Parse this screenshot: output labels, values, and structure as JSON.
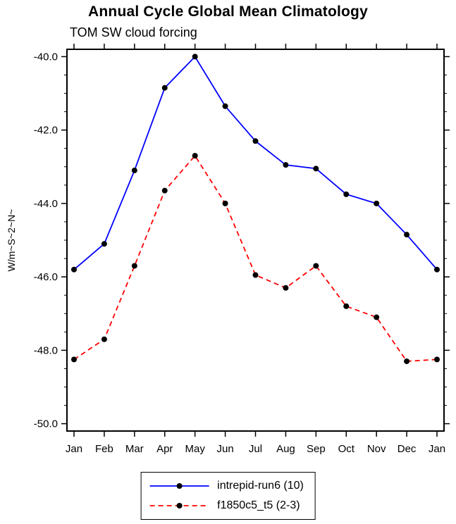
{
  "chart_data": {
    "type": "line",
    "title": "Annual Cycle Global Mean Climatology",
    "subtitle": "TOM SW cloud forcing",
    "ylabel": "W/m~S~2~N~",
    "xlabel": "",
    "categories": [
      "Jan",
      "Feb",
      "Mar",
      "Apr",
      "May",
      "Jun",
      "Jul",
      "Aug",
      "Sep",
      "Oct",
      "Nov",
      "Dec",
      "Jan"
    ],
    "ylim": [
      -50.2,
      -39.8
    ],
    "yticks": [
      -40,
      -42,
      -44,
      -46,
      -48,
      -50
    ],
    "ytick_labels": [
      "-40.0",
      "-42.0",
      "-44.0",
      "-46.0",
      "-48.0",
      "-50.0"
    ],
    "minor_tick_step": 0.5,
    "grid": false,
    "legend_position": "bottom-center",
    "frame_color": "#000000",
    "marker_color": "#000000",
    "series": [
      {
        "name": "intrepid-run6 (10)",
        "color": "#0000ff",
        "dash": "solid",
        "dasharray": "none",
        "marker": "black-dot",
        "values": [
          -45.8,
          -45.1,
          -43.1,
          -40.85,
          -40.0,
          -41.35,
          -42.3,
          -42.95,
          -43.05,
          -43.75,
          -44.0,
          -44.85,
          -45.8
        ]
      },
      {
        "name": "f1850c5_t5 (2-3)",
        "color": "#ff0000",
        "dash": "dashed",
        "dasharray": "7,5",
        "marker": "black-dot",
        "values": [
          -48.25,
          -47.7,
          -45.7,
          -43.65,
          -42.7,
          -44.0,
          -45.95,
          -46.3,
          -45.7,
          -46.8,
          -47.1,
          -48.3,
          -48.25
        ]
      }
    ]
  }
}
